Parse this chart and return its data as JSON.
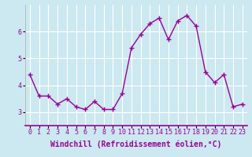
{
  "x": [
    0,
    1,
    2,
    3,
    4,
    5,
    6,
    7,
    8,
    9,
    10,
    11,
    12,
    13,
    14,
    15,
    16,
    17,
    18,
    19,
    20,
    21,
    22,
    23
  ],
  "y": [
    4.4,
    3.6,
    3.6,
    3.3,
    3.5,
    3.2,
    3.1,
    3.4,
    3.1,
    3.1,
    3.7,
    5.4,
    5.9,
    6.3,
    6.5,
    5.7,
    6.4,
    6.6,
    6.2,
    4.5,
    4.1,
    4.4,
    3.2,
    3.3
  ],
  "line_color": "#990099",
  "marker": "+",
  "marker_size": 4,
  "marker_lw": 1.0,
  "line_width": 1.0,
  "bg_color": "#cce8f0",
  "grid_color": "#ffffff",
  "xlabel": "Windchill (Refroidissement éolien,°C)",
  "xlabel_fontsize": 7,
  "tick_fontsize": 6,
  "ylim": [
    2.5,
    7.0
  ],
  "yticks": [
    3,
    4,
    5,
    6
  ],
  "xticks": [
    0,
    1,
    2,
    3,
    4,
    5,
    6,
    7,
    8,
    9,
    10,
    11,
    12,
    13,
    14,
    15,
    16,
    17,
    18,
    19,
    20,
    21,
    22,
    23
  ],
  "xlim": [
    -0.5,
    23.5
  ]
}
